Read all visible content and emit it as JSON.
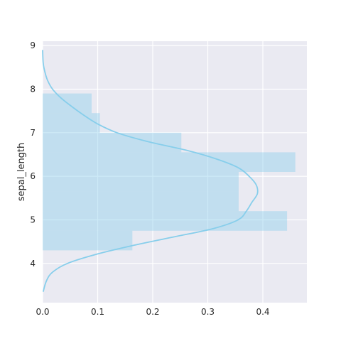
{
  "chart_data": {
    "type": "bar",
    "orientation": "horizontal",
    "title": "",
    "xlabel": "",
    "ylabel": "sepal_length",
    "xlim": [
      0,
      0.48
    ],
    "ylim": [
      3.1,
      9.1
    ],
    "grid": true,
    "legend": "none",
    "x_ticks": [
      "0.0",
      "0.1",
      "0.2",
      "0.3",
      "0.4"
    ],
    "x_tick_values": [
      0,
      0.1,
      0.2,
      0.3,
      0.4
    ],
    "y_ticks": [
      "4",
      "5",
      "6",
      "7",
      "8",
      "9"
    ],
    "y_tick_values": [
      4,
      5,
      6,
      7,
      8,
      9
    ],
    "histogram": [
      {
        "y_start": 4.3,
        "y_end": 4.75,
        "density": 0.163
      },
      {
        "y_start": 4.75,
        "y_end": 5.2,
        "density": 0.444
      },
      {
        "y_start": 5.2,
        "y_end": 5.65,
        "density": 0.356
      },
      {
        "y_start": 5.65,
        "y_end": 6.1,
        "density": 0.356
      },
      {
        "y_start": 6.1,
        "y_end": 6.55,
        "density": 0.459
      },
      {
        "y_start": 6.55,
        "y_end": 7.0,
        "density": 0.252
      },
      {
        "y_start": 7.0,
        "y_end": 7.45,
        "density": 0.104
      },
      {
        "y_start": 7.45,
        "y_end": 7.9,
        "density": 0.089
      }
    ],
    "kde": {
      "y": [
        3.35,
        3.6,
        3.8,
        4.0,
        4.2,
        4.4,
        4.6,
        4.8,
        5.0,
        5.2,
        5.4,
        5.6,
        5.8,
        6.0,
        6.2,
        6.4,
        6.6,
        6.8,
        7.0,
        7.2,
        7.4,
        7.6,
        7.8,
        8.0,
        8.2,
        8.4,
        8.6,
        8.9
      ],
      "density": [
        0.001,
        0.007,
        0.018,
        0.045,
        0.095,
        0.16,
        0.235,
        0.31,
        0.355,
        0.37,
        0.38,
        0.39,
        0.388,
        0.375,
        0.355,
        0.315,
        0.26,
        0.19,
        0.135,
        0.1,
        0.075,
        0.053,
        0.033,
        0.018,
        0.009,
        0.004,
        0.001,
        0.0
      ]
    },
    "colors": {
      "bar": "#87ceeb",
      "kde_line": "#87ceeb",
      "plot_background": "#eaeaf2",
      "grid": "#ffffff"
    }
  }
}
